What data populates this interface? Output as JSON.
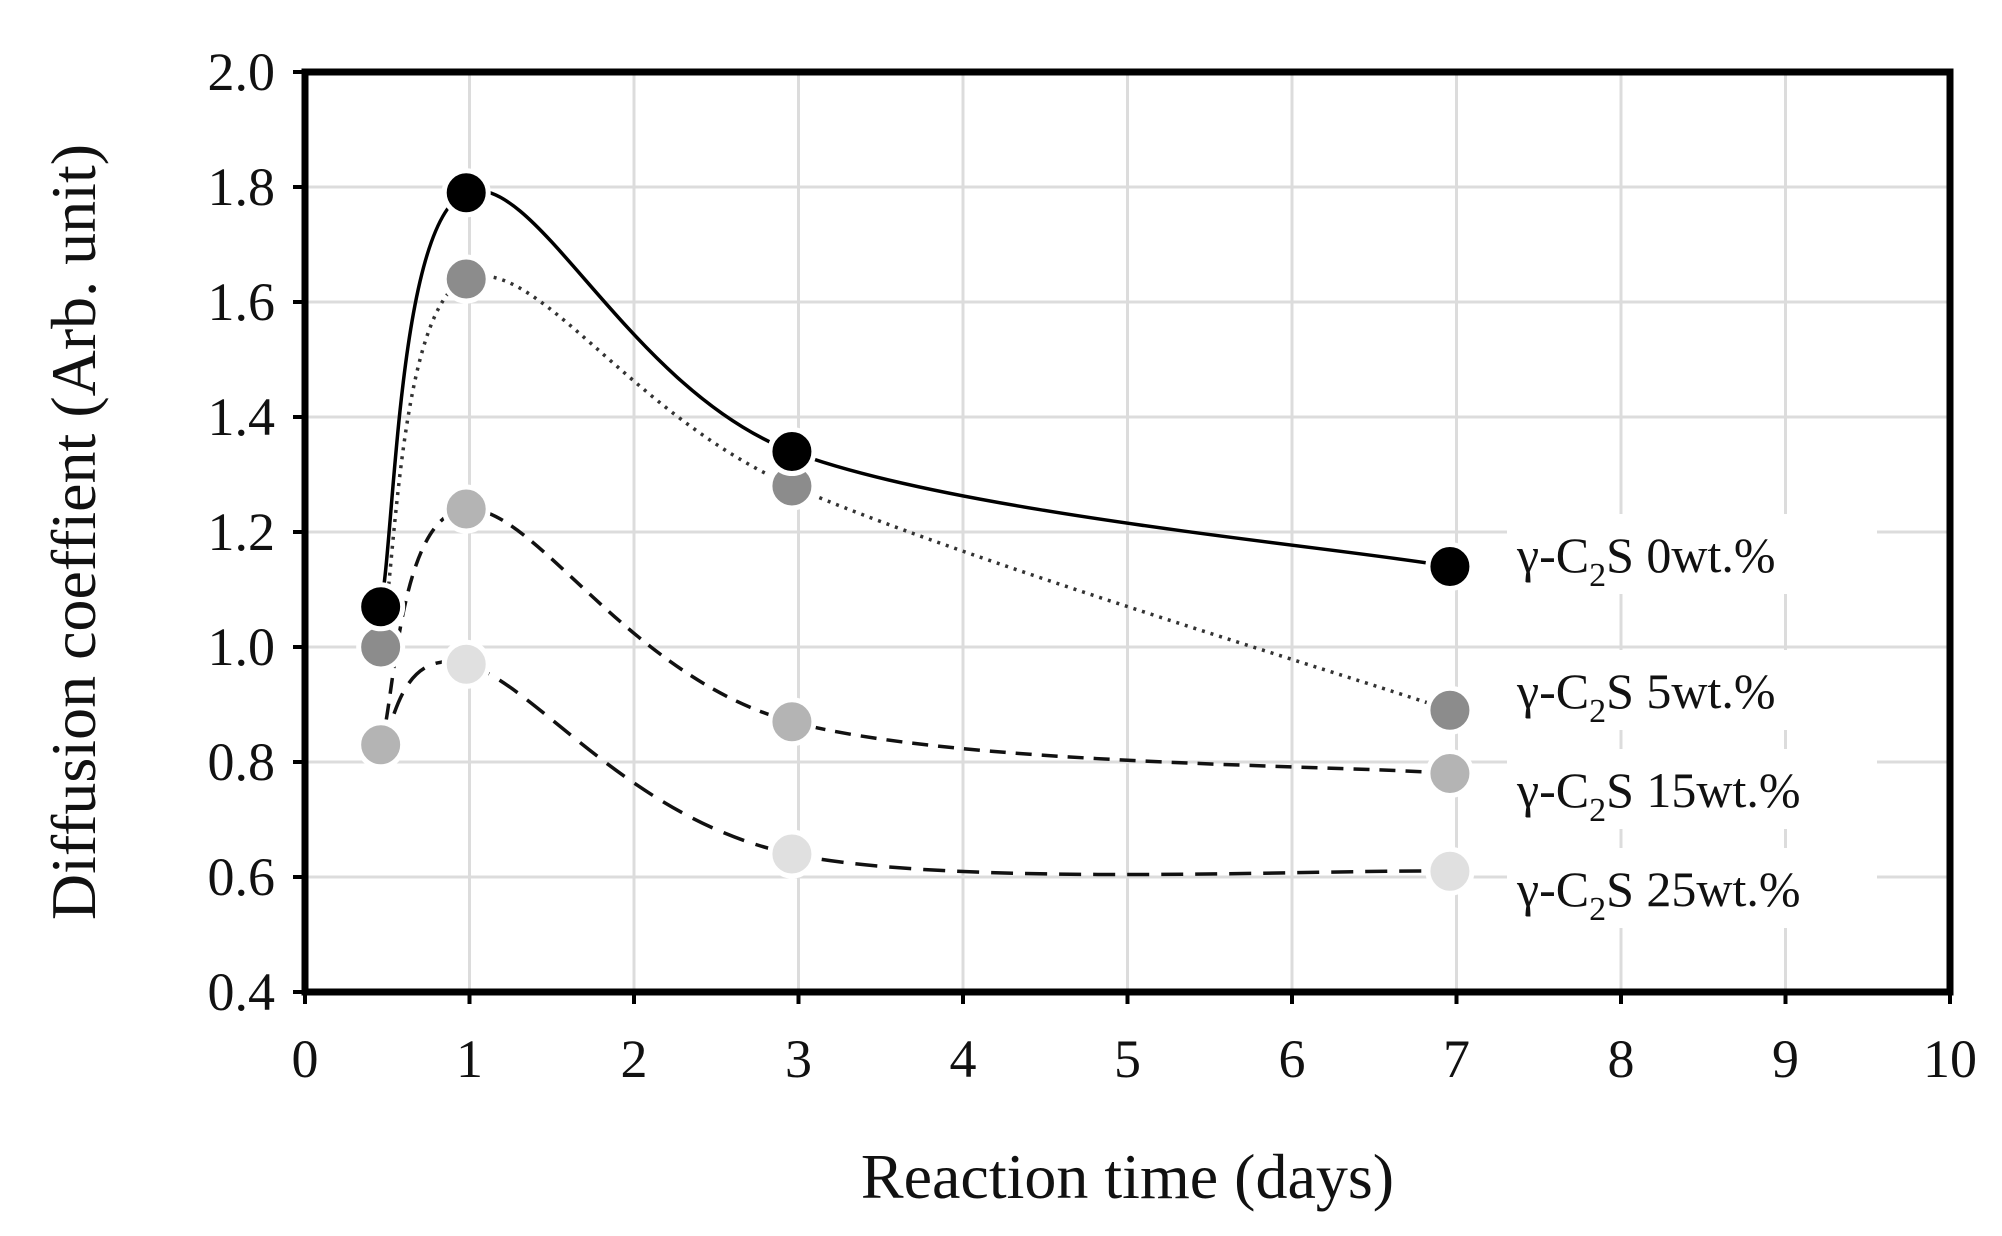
{
  "chart_data": {
    "type": "line",
    "title": "",
    "xlabel": "Reaction time (days)",
    "ylabel": "Diffusion coeffient (Arb. unit)",
    "xlim": [
      0,
      10
    ],
    "ylim": [
      0.4,
      2.0
    ],
    "xticks": [
      0,
      1,
      2,
      3,
      4,
      5,
      6,
      7,
      8,
      9,
      10
    ],
    "yticks": [
      0.4,
      0.6,
      0.8,
      1.0,
      1.2,
      1.4,
      1.6,
      1.8,
      2.0
    ],
    "xtick_labels": [
      "0",
      "1",
      "2",
      "3",
      "4",
      "5",
      "6",
      "7",
      "8",
      "9",
      "10"
    ],
    "ytick_labels": [
      "0.4",
      "0.6",
      "0.8",
      "1.0",
      "1.2",
      "1.4",
      "1.6",
      "1.8",
      "2.0"
    ],
    "grid": true,
    "legend_placement": "right (inline labels)",
    "x": [
      0.46,
      0.98,
      2.96,
      6.96
    ],
    "series": [
      {
        "name": "γ-C2S 0wt.%",
        "label_prefix": "γ-C",
        "label_sub": "2",
        "label_suffix": "S 0wt.%",
        "values": [
          1.07,
          1.79,
          1.34,
          1.14
        ],
        "marker_color": "#000000",
        "line_color": "#000000",
        "line_style": "solid"
      },
      {
        "name": "γ-C2S 5wt.%",
        "label_prefix": "γ-C",
        "label_sub": "2",
        "label_suffix": "S 5wt.%",
        "values": [
          1.0,
          1.64,
          1.28,
          0.89
        ],
        "marker_color": "#8c8c8c",
        "line_color": "#333333",
        "line_style": "dotted"
      },
      {
        "name": "γ-C2S 15wt.%",
        "label_prefix": "γ-C",
        "label_sub": "2",
        "label_suffix": "S 15wt.%",
        "values": [
          0.83,
          1.24,
          0.87,
          0.78
        ],
        "marker_color": "#b4b4b4",
        "line_color": "#111111",
        "line_style": "dashed"
      },
      {
        "name": "γ-C2S 25wt.%",
        "label_prefix": "γ-C",
        "label_sub": "2",
        "label_suffix": "S 25wt.%",
        "values": [
          0.83,
          0.97,
          0.64,
          0.61
        ],
        "marker_color": "#e0e0e0",
        "line_color": "#111111",
        "line_style": "long-dashed"
      }
    ]
  }
}
